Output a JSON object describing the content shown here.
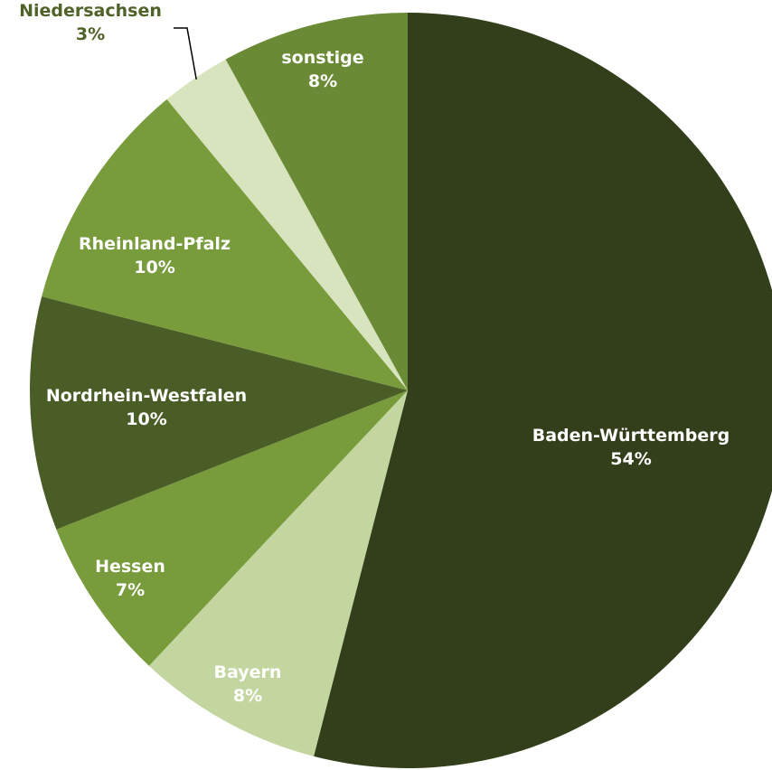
{
  "chart_data": {
    "type": "pie",
    "categories": [
      "Baden-Württemberg",
      "Bayern",
      "Hessen",
      "Nordrhein-Westfalen",
      "Rheinland-Pfalz",
      "Niedersachsen",
      "sonstige"
    ],
    "values": [
      54,
      8,
      7,
      10,
      10,
      3,
      8
    ],
    "value_labels": [
      "54%",
      "8%",
      "7%",
      "10%",
      "10%",
      "3%",
      "8%"
    ],
    "colors": [
      "#323f1a",
      "#c3d6a0",
      "#789b3b",
      "#4b5d26",
      "#789b3b",
      "#d8e4bd",
      "#6a8a35"
    ],
    "label_colors": [
      "#ffffff",
      "#ffffff",
      "#ffffff",
      "#ffffff",
      "#ffffff",
      "#4f6228",
      "#ffffff"
    ],
    "start_angle_deg": 0,
    "direction": "clockwise",
    "legend": "none"
  }
}
